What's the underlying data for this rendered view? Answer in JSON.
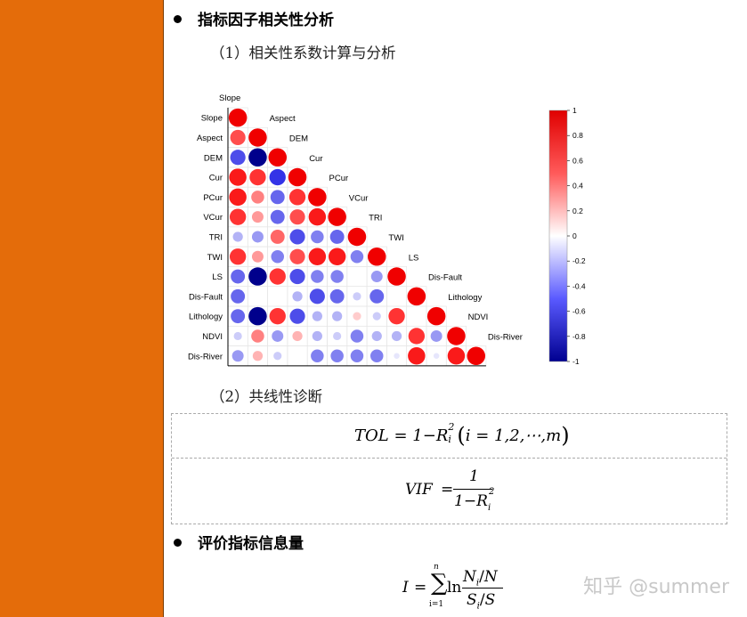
{
  "sections": {
    "heading1": "指标因子相关性分析",
    "sub1": "（1）相关性系数计算与分析",
    "sub2": "（2）共线性诊断",
    "heading2": "评价指标信息量"
  },
  "chart_data": {
    "type": "heatmap",
    "variables": [
      "Slope",
      "Aspect",
      "DEM",
      "Cur",
      "PCur",
      "VCur",
      "TRI",
      "TWI",
      "LS",
      "Dis-Fault",
      "Lithology",
      "NDVI",
      "Dis-River"
    ],
    "colorbar_ticks": [
      "1",
      "0.8",
      "0.6",
      "0.4",
      "0.2",
      "0",
      "-0.2",
      "-0.4",
      "-0.6",
      "-0.8",
      "-1"
    ],
    "colorbar_range": [
      -1,
      1
    ],
    "matrix_lower": [
      [
        1
      ],
      [
        0.7,
        1
      ],
      [
        -0.7,
        -1.0,
        1
      ],
      [
        0.9,
        0.8,
        -0.8,
        1
      ],
      [
        0.9,
        0.5,
        -0.6,
        0.8,
        1
      ],
      [
        0.8,
        0.4,
        -0.6,
        0.7,
        0.9,
        1
      ],
      [
        -0.3,
        -0.4,
        0.6,
        -0.7,
        -0.5,
        -0.6,
        1
      ],
      [
        0.8,
        0.4,
        -0.5,
        0.7,
        0.9,
        0.9,
        -0.5,
        1
      ],
      [
        -0.6,
        -1.0,
        0.8,
        -0.7,
        -0.5,
        -0.5,
        0,
        -0.4,
        1
      ],
      [
        -0.6,
        0,
        0,
        -0.3,
        -0.7,
        -0.6,
        -0.2,
        -0.6,
        0,
        1
      ],
      [
        -0.6,
        -1.0,
        0.8,
        -0.7,
        -0.3,
        -0.3,
        0.2,
        -0.2,
        0.8,
        0,
        1
      ],
      [
        -0.2,
        0.5,
        -0.4,
        0.3,
        -0.3,
        -0.2,
        -0.5,
        -0.3,
        -0.3,
        0.8,
        -0.4,
        1
      ],
      [
        -0.4,
        0.3,
        -0.2,
        0,
        -0.5,
        -0.5,
        -0.5,
        -0.5,
        -0.1,
        0.9,
        -0.1,
        0.9,
        1
      ]
    ]
  },
  "formulas": {
    "tol": {
      "lhs": "TOL",
      "eq": "=",
      "one": "1",
      "minus": "−",
      "R": "R",
      "sub_i": "i",
      "sup2": "2",
      "paren_content": "i = 1,2,⋯,m"
    },
    "vif": {
      "lhs": "VIF",
      "eq": "=",
      "num": "1",
      "den_one": "1",
      "minus": "−",
      "R": "R",
      "sub_i": "i",
      "sup2": "2"
    },
    "info": {
      "lhs": "I",
      "eq": "=",
      "sum": "∑",
      "sum_top": "n",
      "sum_bottom": "i=1",
      "ln": "ln",
      "num_N": "N",
      "num_i": "i",
      "slash": "/",
      "num_Nt": "N",
      "den_S": "S",
      "den_i": "i",
      "den_St": "S"
    }
  },
  "watermark": "知乎 @summer"
}
